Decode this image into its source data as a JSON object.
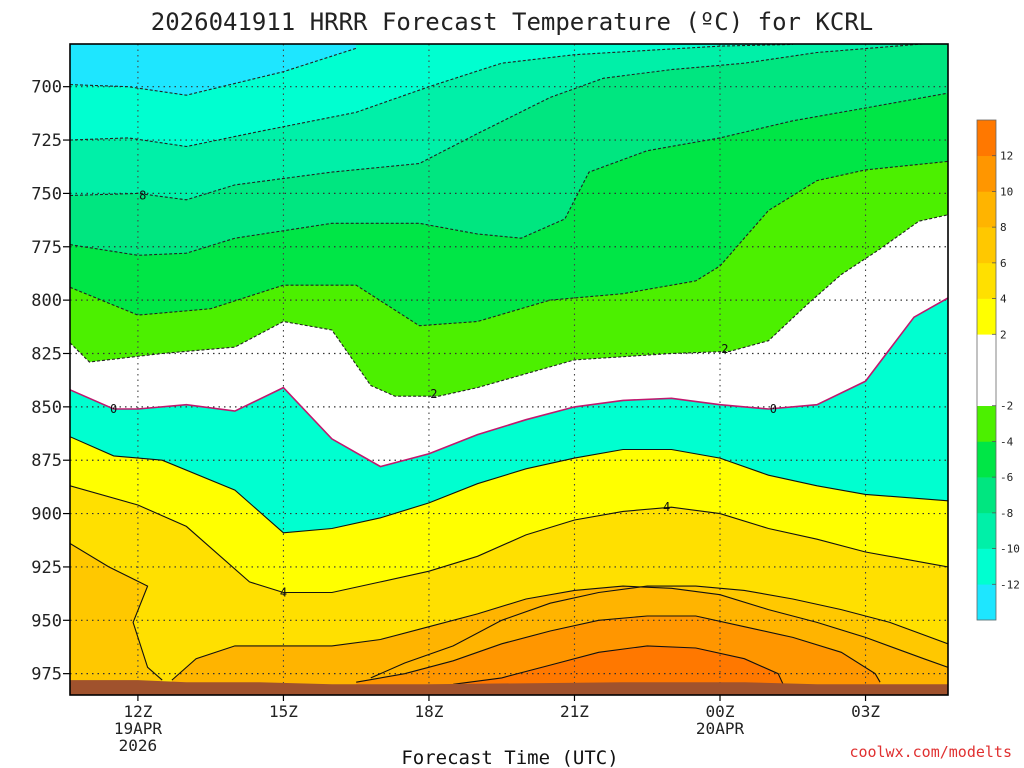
{
  "chart_data": {
    "type": "heatmap",
    "title": "2026041911 HRRR Forecast Temperature (ºC) for KCRL",
    "xlabel": "Forecast Time (UTC)",
    "ylabel": "",
    "credit": "coolwx.com/modelts",
    "y_reversed": true,
    "ylim": [
      680,
      985
    ],
    "xlim": [
      10.6,
      28.7
    ],
    "grid": true,
    "y_ticks": [
      {
        "value": 700,
        "label": "700"
      },
      {
        "value": 725,
        "label": "725"
      },
      {
        "value": 750,
        "label": "750"
      },
      {
        "value": 775,
        "label": "775"
      },
      {
        "value": 800,
        "label": "800"
      },
      {
        "value": 825,
        "label": "825"
      },
      {
        "value": 850,
        "label": "850"
      },
      {
        "value": 875,
        "label": "875"
      },
      {
        "value": 900,
        "label": "900"
      },
      {
        "value": 925,
        "label": "925"
      },
      {
        "value": 950,
        "label": "950"
      },
      {
        "value": 975,
        "label": "975"
      }
    ],
    "x_ticks": [
      {
        "value": 12,
        "lines": [
          "12Z",
          "19APR",
          "2026"
        ]
      },
      {
        "value": 15,
        "lines": [
          "15Z"
        ]
      },
      {
        "value": 18,
        "lines": [
          "18Z"
        ]
      },
      {
        "value": 21,
        "lines": [
          "21Z"
        ]
      },
      {
        "value": 24,
        "lines": [
          "00Z",
          "20APR"
        ]
      },
      {
        "value": 27,
        "lines": [
          "03Z"
        ]
      }
    ],
    "colorbar": {
      "levels": [
        -14,
        -12,
        -10,
        -8,
        -6,
        -4,
        -2,
        2,
        4,
        6,
        8,
        10,
        12,
        14
      ],
      "colors": [
        "#1ee6ff",
        "#00ffd0",
        "#00f0a8",
        "#00e680",
        "#00e646",
        "#4cf000",
        "#ffffff",
        "#ffff00",
        "#ffe000",
        "#ffc800",
        "#ffb400",
        "#ff9600",
        "#ff7800"
      ],
      "tick_labels": [
        {
          "value": -12,
          "label": "-12"
        },
        {
          "value": -10,
          "label": "-10"
        },
        {
          "value": -8,
          "label": "-8"
        },
        {
          "value": -6,
          "label": "-6"
        },
        {
          "value": -4,
          "label": "-4"
        },
        {
          "value": -2,
          "label": "-2"
        },
        {
          "value": 2,
          "label": "2"
        },
        {
          "value": 4,
          "label": "4"
        },
        {
          "value": 6,
          "label": "6"
        },
        {
          "value": 8,
          "label": "8"
        },
        {
          "value": 10,
          "label": "10"
        },
        {
          "value": 12,
          "label": "12"
        }
      ]
    },
    "ground_color": "#a0522d",
    "ground_pressure": [
      [
        10.6,
        978
      ],
      [
        12,
        978
      ],
      [
        13,
        979
      ],
      [
        14.5,
        979
      ],
      [
        16,
        980
      ],
      [
        18,
        980
      ],
      [
        22,
        979
      ],
      [
        24.5,
        979
      ],
      [
        26,
        980
      ],
      [
        28.7,
        980
      ]
    ],
    "contours": [
      {
        "value": -12,
        "style": "dashed",
        "color": "#222222",
        "fill": "#1ee6ff",
        "fill_side": "above",
        "points": [
          [
            10.6,
            699
          ],
          [
            11.8,
            700
          ],
          [
            13,
            704
          ],
          [
            15,
            693
          ],
          [
            16.5,
            682
          ]
        ]
      },
      {
        "value": -10,
        "style": "dashed",
        "color": "#222222",
        "fill": "#00ffd0",
        "fill_side": "above",
        "points": [
          [
            10.6,
            725
          ],
          [
            11.8,
            724
          ],
          [
            13,
            728
          ],
          [
            14.5,
            721
          ],
          [
            16.5,
            712
          ],
          [
            18,
            700
          ],
          [
            19.5,
            689
          ],
          [
            21,
            685
          ],
          [
            22.5,
            683
          ],
          [
            24,
            681
          ],
          [
            25.5,
            680.2
          ]
        ]
      },
      {
        "value": -8,
        "style": "dashed",
        "color": "#222222",
        "fill": "#00f0a8",
        "fill_side": "above",
        "points": [
          [
            10.6,
            751
          ],
          [
            12,
            750
          ],
          [
            13,
            753
          ],
          [
            14,
            746
          ],
          [
            16,
            740
          ],
          [
            17.8,
            736
          ],
          [
            19,
            722
          ],
          [
            20.5,
            705
          ],
          [
            21.6,
            696
          ],
          [
            23,
            692
          ],
          [
            24.5,
            689
          ],
          [
            26,
            684
          ],
          [
            28.7,
            679
          ]
        ]
      },
      {
        "value": -6,
        "style": "dashed",
        "color": "#222222",
        "fill": "#00e680",
        "fill_side": "above",
        "points": [
          [
            10.6,
            774
          ],
          [
            12,
            779
          ],
          [
            13,
            778
          ],
          [
            14,
            771
          ],
          [
            16,
            764
          ],
          [
            17.8,
            764
          ],
          [
            19,
            769
          ],
          [
            19.9,
            771
          ],
          [
            20.8,
            762
          ],
          [
            21.3,
            740
          ],
          [
            22.5,
            730
          ],
          [
            24,
            724
          ],
          [
            25.5,
            716
          ],
          [
            27,
            710
          ],
          [
            28.7,
            703
          ]
        ]
      },
      {
        "value": -4,
        "style": "dashed",
        "color": "#222222",
        "fill": "#00e646",
        "fill_side": "above",
        "points": [
          [
            10.6,
            794
          ],
          [
            12,
            807
          ],
          [
            13.5,
            804
          ],
          [
            15,
            793
          ],
          [
            16.5,
            793
          ],
          [
            17.8,
            812
          ],
          [
            19,
            810
          ],
          [
            20.5,
            800
          ],
          [
            22,
            797
          ],
          [
            23.5,
            791
          ],
          [
            24,
            784
          ],
          [
            25,
            758
          ],
          [
            26,
            744
          ],
          [
            27,
            739
          ],
          [
            28.7,
            735
          ]
        ]
      },
      {
        "value": -2,
        "style": "dashed",
        "color": "#222222",
        "fill": "#4cf000",
        "fill_side": "above",
        "points": [
          [
            10.6,
            820
          ],
          [
            11,
            829
          ],
          [
            12.5,
            825
          ],
          [
            14,
            822
          ],
          [
            15,
            810
          ],
          [
            16,
            814
          ],
          [
            16.8,
            840
          ],
          [
            17.3,
            845
          ],
          [
            18.2,
            845
          ],
          [
            19,
            841
          ],
          [
            21,
            828
          ],
          [
            23,
            825
          ],
          [
            24.2,
            824
          ],
          [
            25,
            819
          ],
          [
            25.8,
            802
          ],
          [
            26.5,
            788
          ],
          [
            27.3,
            776
          ],
          [
            28.1,
            763
          ],
          [
            28.7,
            760
          ]
        ],
        "labels": [
          {
            "x": 18.1,
            "y": 844,
            "text": "2"
          },
          {
            "x": 24.1,
            "y": 823,
            "text": "2"
          }
        ]
      },
      {
        "value": 0,
        "style": "solid",
        "color": "#c0186e",
        "fill": "#ffffff",
        "fill_side": "above",
        "points": [
          [
            10.6,
            842
          ],
          [
            11.5,
            851
          ],
          [
            12,
            851
          ],
          [
            13,
            849
          ],
          [
            14,
            852
          ],
          [
            15,
            841
          ],
          [
            16,
            865
          ],
          [
            17,
            878
          ],
          [
            18,
            872
          ],
          [
            19,
            863
          ],
          [
            20,
            856
          ],
          [
            21,
            850
          ],
          [
            22,
            847
          ],
          [
            23,
            846
          ],
          [
            24,
            849
          ],
          [
            25,
            851
          ],
          [
            26,
            849
          ],
          [
            27,
            838
          ],
          [
            28,
            808
          ],
          [
            28.7,
            799
          ]
        ],
        "labels": [
          {
            "x": 11.5,
            "y": 851,
            "text": "0"
          },
          {
            "x": 25.1,
            "y": 851,
            "text": "0"
          }
        ]
      },
      {
        "value": 2,
        "style": "solid",
        "color": "#111111",
        "fill": "#ffff00",
        "fill_side": "below",
        "points": [
          [
            10.6,
            864
          ],
          [
            11.5,
            873
          ],
          [
            12.5,
            875
          ],
          [
            14,
            889
          ],
          [
            15,
            909
          ],
          [
            16,
            907
          ],
          [
            17,
            902
          ],
          [
            18,
            895
          ],
          [
            19,
            886
          ],
          [
            20,
            879
          ],
          [
            21,
            874
          ],
          [
            22,
            870
          ],
          [
            23,
            870
          ],
          [
            24,
            874
          ],
          [
            25,
            882
          ],
          [
            26,
            887
          ],
          [
            27,
            891
          ],
          [
            28.7,
            894
          ]
        ]
      },
      {
        "value": 4,
        "style": "solid",
        "color": "#111111",
        "fill": "#ffe000",
        "fill_side": "below",
        "points": [
          [
            10.6,
            887
          ],
          [
            12,
            896
          ],
          [
            13,
            906
          ],
          [
            14.3,
            932
          ],
          [
            15,
            937
          ],
          [
            16,
            937
          ],
          [
            17,
            932
          ],
          [
            18,
            927
          ],
          [
            19,
            920
          ],
          [
            20,
            910
          ],
          [
            21,
            903
          ],
          [
            22,
            899
          ],
          [
            23,
            897
          ],
          [
            24,
            900
          ],
          [
            25,
            907
          ],
          [
            26,
            912
          ],
          [
            27,
            918
          ],
          [
            28.7,
            925
          ]
        ],
        "labels": [
          {
            "x": 15,
            "y": 937,
            "text": "4"
          },
          {
            "x": 22.9,
            "y": 897,
            "text": "4"
          }
        ]
      },
      {
        "value": 6,
        "style": "solid",
        "color": "#111111",
        "fill": "#ffc800",
        "fill_side": "below",
        "points": [
          [
            10.6,
            914
          ],
          [
            11.4,
            925
          ],
          [
            12.2,
            934
          ],
          [
            11.9,
            951
          ],
          [
            12.2,
            972
          ],
          [
            12.5,
            978
          ]
        ]
      },
      {
        "value": 6,
        "style": "solid",
        "color": "#111111",
        "fill": "#ffc800",
        "fill_side": "below",
        "points": [
          [
            16.8,
            977
          ],
          [
            17.5,
            970
          ],
          [
            18.5,
            962
          ],
          [
            19.5,
            950
          ],
          [
            20.5,
            942
          ],
          [
            21.5,
            937
          ],
          [
            22.5,
            934
          ],
          [
            23.5,
            934
          ],
          [
            24.5,
            936
          ],
          [
            25.5,
            940
          ],
          [
            26.5,
            945
          ],
          [
            27.5,
            951
          ],
          [
            28.7,
            961
          ]
        ]
      },
      {
        "value": 8,
        "style": "solid",
        "color": "#111111",
        "fill": "#ffb400",
        "fill_side": "below",
        "points": [
          [
            12.7,
            978
          ],
          [
            13.2,
            968
          ],
          [
            14,
            962
          ],
          [
            15,
            962
          ],
          [
            16,
            962
          ],
          [
            17,
            959
          ],
          [
            18,
            953
          ],
          [
            19,
            947
          ],
          [
            20,
            940
          ],
          [
            21,
            936
          ],
          [
            22,
            934
          ],
          [
            23,
            935
          ],
          [
            24,
            938
          ],
          [
            25,
            945
          ],
          [
            26,
            951
          ],
          [
            27,
            958
          ],
          [
            28.2,
            968
          ],
          [
            28.7,
            972
          ]
        ]
      },
      {
        "value": 10,
        "style": "solid",
        "color": "#111111",
        "fill": "#ff9600",
        "fill_side": "below",
        "points": [
          [
            16.5,
            979
          ],
          [
            17.5,
            975
          ],
          [
            18.5,
            969
          ],
          [
            19.5,
            961
          ],
          [
            20.5,
            955
          ],
          [
            21.5,
            950
          ],
          [
            22.5,
            948
          ],
          [
            23.5,
            948
          ],
          [
            24.5,
            953
          ],
          [
            25.5,
            958
          ],
          [
            26.5,
            965
          ],
          [
            27.2,
            975
          ],
          [
            27.3,
            979
          ]
        ]
      },
      {
        "value": 12,
        "style": "solid",
        "color": "#111111",
        "fill": "#ff7800",
        "fill_side": "below",
        "points": [
          [
            18.5,
            980
          ],
          [
            19.5,
            977
          ],
          [
            20.5,
            971
          ],
          [
            21.5,
            965
          ],
          [
            22.5,
            962
          ],
          [
            23.5,
            963
          ],
          [
            24.5,
            968
          ],
          [
            25.2,
            975
          ],
          [
            25.3,
            980
          ]
        ]
      }
    ],
    "extra_labels": [
      {
        "x": 12.1,
        "y": 751,
        "text": "8"
      }
    ]
  }
}
